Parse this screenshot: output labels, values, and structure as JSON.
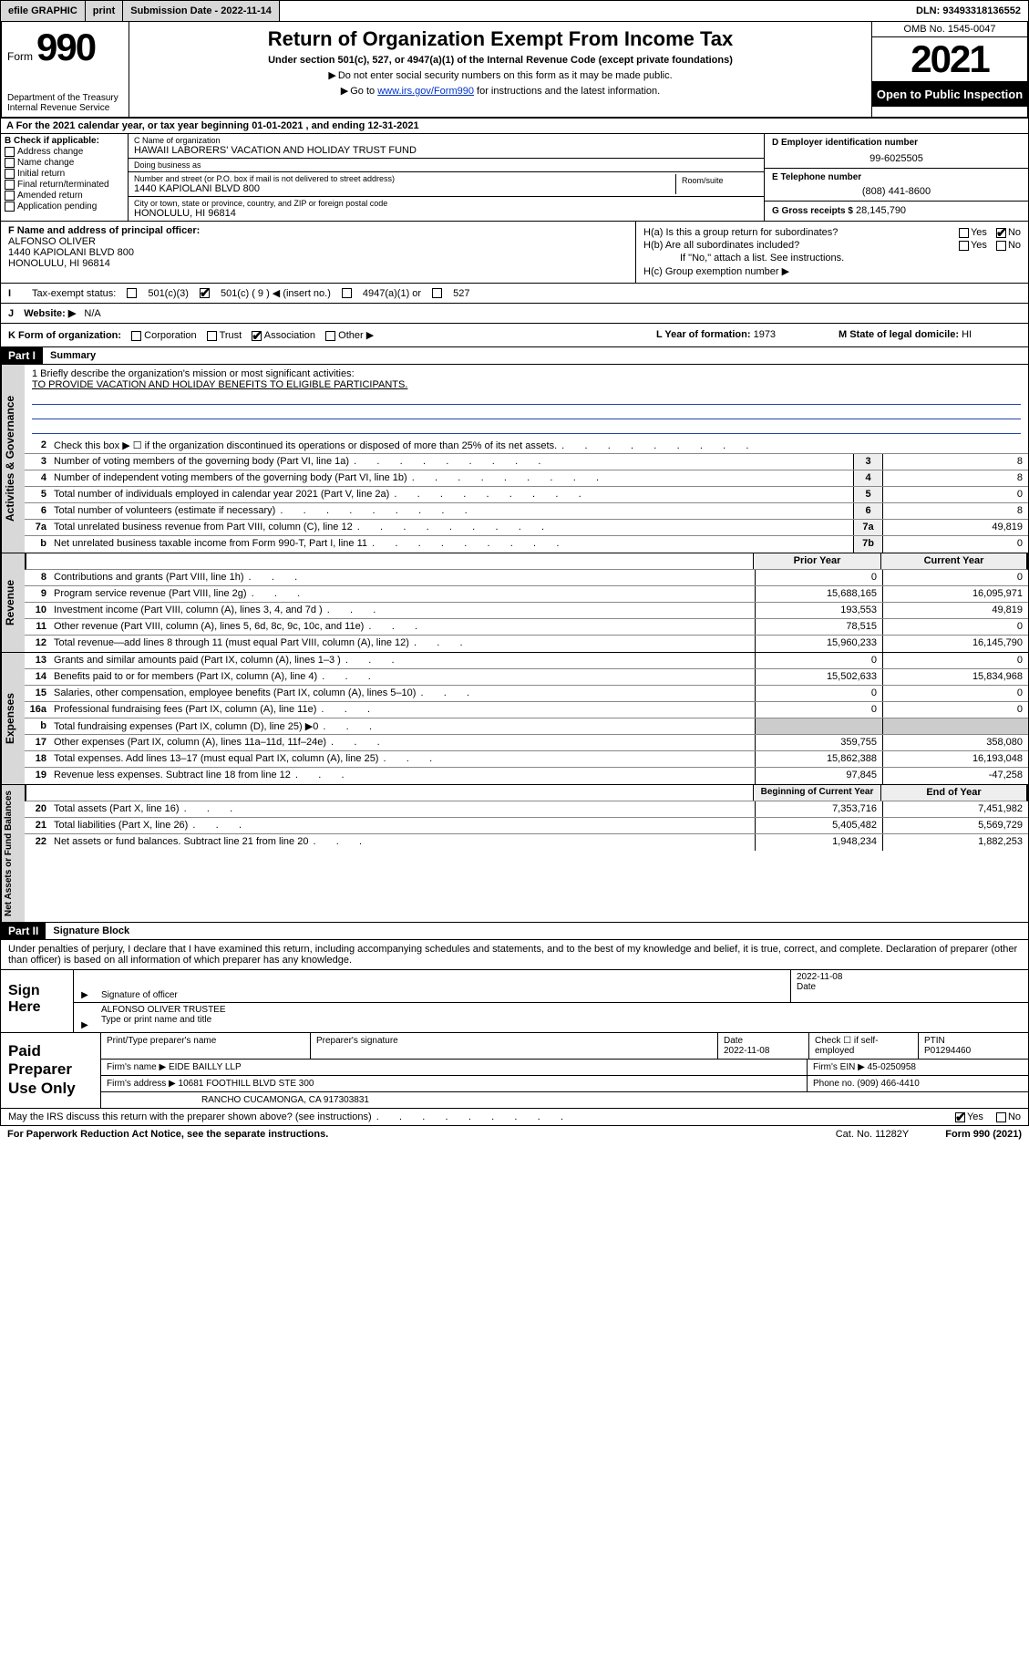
{
  "topbar": {
    "efile": "efile GRAPHIC",
    "print": "print",
    "sub_label": "Submission Date - 2022-11-14",
    "dln": "DLN: 93493318136552"
  },
  "header": {
    "form_word": "Form",
    "form_num": "990",
    "dept": "Department of the Treasury\nInternal Revenue Service",
    "title": "Return of Organization Exempt From Income Tax",
    "subtitle": "Under section 501(c), 527, or 4947(a)(1) of the Internal Revenue Code (except private foundations)",
    "note1": "Do not enter social security numbers on this form as it may be made public.",
    "note2_a": "Go to ",
    "note2_link": "www.irs.gov/Form990",
    "note2_b": " for instructions and the latest information.",
    "omb": "OMB No. 1545-0047",
    "year": "2021",
    "inspection": "Open to Public Inspection"
  },
  "rowA": "A For the 2021 calendar year, or tax year beginning 01-01-2021   , and ending 12-31-2021",
  "checkB": {
    "title": "B Check if applicable:",
    "items": [
      "Address change",
      "Name change",
      "Initial return",
      "Final return/terminated",
      "Amended return",
      "Application pending"
    ]
  },
  "entity": {
    "c_label": "C Name of organization",
    "c_name": "HAWAII LABORERS' VACATION AND HOLIDAY TRUST FUND",
    "dba_label": "Doing business as",
    "dba": "",
    "street_label": "Number and street (or P.O. box if mail is not delivered to street address)",
    "room_label": "Room/suite",
    "street": "1440 KAPIOLANI BLVD 800",
    "city_label": "City or town, state or province, country, and ZIP or foreign postal code",
    "city": "HONOLULU, HI  96814",
    "d_label": "D Employer identification number",
    "d_val": "99-6025505",
    "e_label": "E Telephone number",
    "e_val": "(808) 441-8600",
    "g_label": "G Gross receipts $",
    "g_val": "28,145,790"
  },
  "fh": {
    "f_label": "F  Name and address of principal officer:",
    "f_name": "ALFONSO OLIVER",
    "f_addr1": "1440 KAPIOLANI BLVD 800",
    "f_addr2": "HONOLULU, HI  96814",
    "ha": "H(a)  Is this a group return for subordinates?",
    "hb": "H(b)  Are all subordinates included?",
    "hb_note": "If \"No,\" attach a list. See instructions.",
    "hc": "H(c)  Group exemption number ▶",
    "yes": "Yes",
    "no": "No"
  },
  "rowI": {
    "label": "Tax-exempt status:",
    "opts": [
      "501(c)(3)",
      "501(c) ( 9 ) ◀ (insert no.)",
      "4947(a)(1) or",
      "527"
    ]
  },
  "rowJ": {
    "label": "Website: ▶",
    "val": "N/A"
  },
  "rowK": {
    "label": "K Form of organization:",
    "opts": [
      "Corporation",
      "Trust",
      "Association",
      "Other ▶"
    ],
    "checked_idx": 2
  },
  "rowL": {
    "label": "L Year of formation:",
    "val": "1973"
  },
  "rowM": {
    "label": "M State of legal domicile:",
    "val": "HI"
  },
  "partI": {
    "hdr": "Part I",
    "title": "Summary"
  },
  "mission": {
    "line1_label": "1   Briefly describe the organization's mission or most significant activities:",
    "line1_val": "TO PROVIDE VACATION AND HOLIDAY BENEFITS TO ELIGIBLE PARTICIPANTS."
  },
  "gov_lines": [
    {
      "n": "2",
      "desc": "Check this box ▶ ☐  if the organization discontinued its operations or disposed of more than 25% of its net assets.",
      "box": "",
      "val": ""
    },
    {
      "n": "3",
      "desc": "Number of voting members of the governing body (Part VI, line 1a)",
      "box": "3",
      "val": "8"
    },
    {
      "n": "4",
      "desc": "Number of independent voting members of the governing body (Part VI, line 1b)",
      "box": "4",
      "val": "8"
    },
    {
      "n": "5",
      "desc": "Total number of individuals employed in calendar year 2021 (Part V, line 2a)",
      "box": "5",
      "val": "0"
    },
    {
      "n": "6",
      "desc": "Total number of volunteers (estimate if necessary)",
      "box": "6",
      "val": "8"
    },
    {
      "n": "7a",
      "desc": "Total unrelated business revenue from Part VIII, column (C), line 12",
      "box": "7a",
      "val": "49,819"
    },
    {
      "n": "b",
      "desc": "Net unrelated business taxable income from Form 990-T, Part I, line 11",
      "box": "7b",
      "val": "0"
    }
  ],
  "rev_hdr": {
    "prior": "Prior Year",
    "curr": "Current Year"
  },
  "rev_lines": [
    {
      "n": "8",
      "desc": "Contributions and grants (Part VIII, line 1h)",
      "p": "0",
      "c": "0"
    },
    {
      "n": "9",
      "desc": "Program service revenue (Part VIII, line 2g)",
      "p": "15,688,165",
      "c": "16,095,971"
    },
    {
      "n": "10",
      "desc": "Investment income (Part VIII, column (A), lines 3, 4, and 7d )",
      "p": "193,553",
      "c": "49,819"
    },
    {
      "n": "11",
      "desc": "Other revenue (Part VIII, column (A), lines 5, 6d, 8c, 9c, 10c, and 11e)",
      "p": "78,515",
      "c": "0"
    },
    {
      "n": "12",
      "desc": "Total revenue—add lines 8 through 11 (must equal Part VIII, column (A), line 12)",
      "p": "15,960,233",
      "c": "16,145,790"
    }
  ],
  "exp_lines": [
    {
      "n": "13",
      "desc": "Grants and similar amounts paid (Part IX, column (A), lines 1–3 )",
      "p": "0",
      "c": "0"
    },
    {
      "n": "14",
      "desc": "Benefits paid to or for members (Part IX, column (A), line 4)",
      "p": "15,502,633",
      "c": "15,834,968"
    },
    {
      "n": "15",
      "desc": "Salaries, other compensation, employee benefits (Part IX, column (A), lines 5–10)",
      "p": "0",
      "c": "0"
    },
    {
      "n": "16a",
      "desc": "Professional fundraising fees (Part IX, column (A), line 11e)",
      "p": "0",
      "c": "0"
    },
    {
      "n": "b",
      "desc": "Total fundraising expenses (Part IX, column (D), line 25) ▶0",
      "p": "",
      "c": "",
      "shade": true
    },
    {
      "n": "17",
      "desc": "Other expenses (Part IX, column (A), lines 11a–11d, 11f–24e)",
      "p": "359,755",
      "c": "358,080"
    },
    {
      "n": "18",
      "desc": "Total expenses. Add lines 13–17 (must equal Part IX, column (A), line 25)",
      "p": "15,862,388",
      "c": "16,193,048"
    },
    {
      "n": "19",
      "desc": "Revenue less expenses. Subtract line 18 from line 12",
      "p": "97,845",
      "c": "-47,258"
    }
  ],
  "na_hdr": {
    "beg": "Beginning of Current Year",
    "end": "End of Year"
  },
  "na_lines": [
    {
      "n": "20",
      "desc": "Total assets (Part X, line 16)",
      "p": "7,353,716",
      "c": "7,451,982"
    },
    {
      "n": "21",
      "desc": "Total liabilities (Part X, line 26)",
      "p": "5,405,482",
      "c": "5,569,729"
    },
    {
      "n": "22",
      "desc": "Net assets or fund balances. Subtract line 21 from line 20",
      "p": "1,948,234",
      "c": "1,882,253"
    }
  ],
  "partII": {
    "hdr": "Part II",
    "title": "Signature Block"
  },
  "sig": {
    "decl": "Under penalties of perjury, I declare that I have examined this return, including accompanying schedules and statements, and to the best of my knowledge and belief, it is true, correct, and complete. Declaration of preparer (other than officer) is based on all information of which preparer has any knowledge.",
    "sign_here": "Sign Here",
    "sig_officer_lab": "Signature of officer",
    "date_lab": "Date",
    "date_val": "2022-11-08",
    "name_title": "ALFONSO OLIVER  TRUSTEE",
    "name_title_lab": "Type or print name and title"
  },
  "prep": {
    "label": "Paid Preparer Use Only",
    "r1": {
      "a": "Print/Type preparer's name",
      "b": "Preparer's signature",
      "c": "Date",
      "cval": "2022-11-08",
      "d": "Check ☐ if self-employed",
      "e": "PTIN",
      "eval": "P01294460"
    },
    "r2": {
      "a": "Firm's name      ▶",
      "aval": "EIDE BAILLY LLP",
      "b": "Firm's EIN ▶",
      "bval": "45-0250958"
    },
    "r3": {
      "a": "Firm's address ▶",
      "aval": "10681 FOOTHILL BLVD STE 300",
      "b": "Phone no.",
      "bval": "(909) 466-4410"
    },
    "r4": {
      "aval": "RANCHO CUCAMONGA, CA  917303831"
    }
  },
  "discuss": {
    "q": "May the IRS discuss this return with the preparer shown above? (see instructions)",
    "yes": "Yes",
    "no": "No"
  },
  "footer": {
    "a": "For Paperwork Reduction Act Notice, see the separate instructions.",
    "b": "Cat. No. 11282Y",
    "c": "Form 990 (2021)"
  },
  "vtabs": {
    "gov": "Activities & Governance",
    "rev": "Revenue",
    "exp": "Expenses",
    "na": "Net Assets or Fund Balances"
  }
}
